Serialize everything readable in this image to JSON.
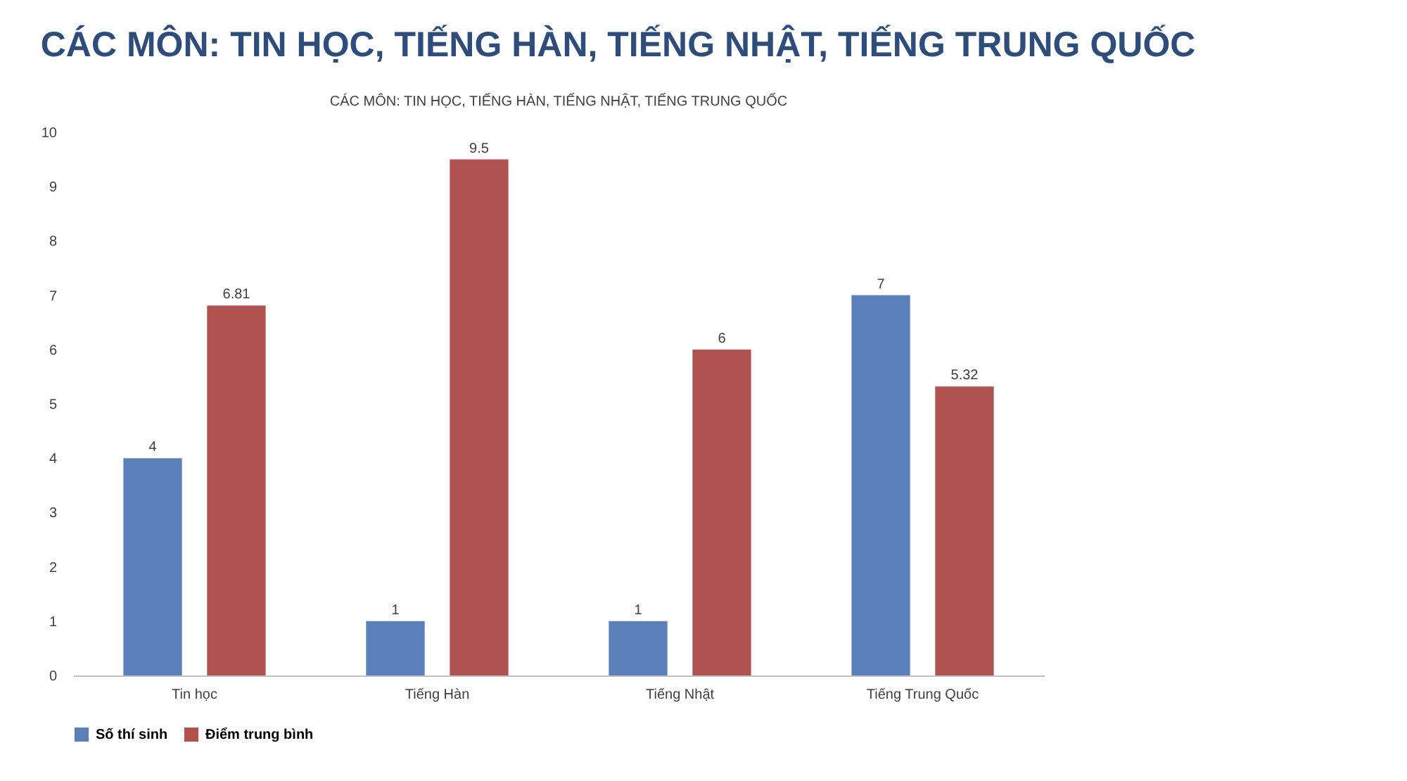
{
  "chart_data": {
    "type": "bar",
    "title": "CÁC MÔN: TIN HỌC, TIẾNG HÀN, TIẾNG NHẬT, TIẾNG TRUNG QUỐC",
    "subtitle": "CÁC MÔN: TIN HỌC, TIẾNG HÀN, TIẾNG NHẬT, TIẾNG TRUNG QUỐC",
    "categories": [
      "Tin học",
      "Tiếng Hàn",
      "Tiếng Nhật",
      "Tiếng Trung Quốc"
    ],
    "series": [
      {
        "name": "Số thí sinh",
        "color": "#5b7fb9",
        "values": [
          4,
          1,
          1,
          7
        ]
      },
      {
        "name": "Điểm trung bình",
        "color": "#b0524f",
        "values": [
          6.81,
          9.5,
          6,
          5.32
        ]
      }
    ],
    "ylim": [
      0,
      10
    ],
    "yticks": [
      0,
      1,
      2,
      3,
      4,
      5,
      6,
      7,
      8,
      9,
      10
    ],
    "grid": false,
    "legend": "bottom",
    "data_labels": true
  }
}
